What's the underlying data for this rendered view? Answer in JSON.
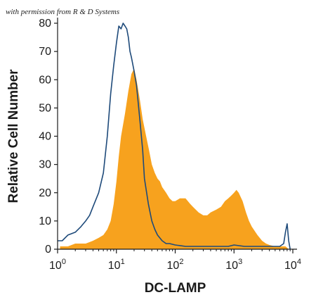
{
  "watermark": "with permission from R & D Systems",
  "chart_data": {
    "type": "area",
    "xlabel": "DC-LAMP",
    "ylabel": "Relative Cell Number",
    "x_scale": "log",
    "xlim": [
      1,
      10000
    ],
    "ylim": [
      0,
      80
    ],
    "x_ticks": [
      {
        "value": 1,
        "base": "10",
        "exp": "0"
      },
      {
        "value": 10,
        "base": "10",
        "exp": "1"
      },
      {
        "value": 100,
        "base": "10",
        "exp": "2"
      },
      {
        "value": 1000,
        "base": "10",
        "exp": "3"
      },
      {
        "value": 10000,
        "base": "10",
        "exp": "4"
      }
    ],
    "y_ticks": [
      0,
      10,
      20,
      30,
      40,
      50,
      60,
      70,
      80
    ],
    "grid": false,
    "series": [
      {
        "style": "filled",
        "color": "#f7a21e",
        "x": [
          1.1,
          1.5,
          2,
          3,
          4,
          5,
          6,
          7,
          8,
          9,
          10,
          11,
          12,
          14,
          16,
          18,
          20,
          22,
          25,
          28,
          32,
          36,
          40,
          45,
          50,
          55,
          60,
          70,
          80,
          90,
          100,
          120,
          150,
          180,
          200,
          250,
          300,
          350,
          400,
          500,
          600,
          700,
          800,
          900,
          1000,
          1100,
          1200,
          1400,
          1600,
          1800,
          2000,
          2500,
          3000,
          3500,
          4000,
          5000,
          6000,
          7000,
          7500,
          8000,
          8500
        ],
        "y": [
          1,
          1,
          2,
          2,
          3,
          4,
          5,
          7,
          10,
          16,
          24,
          33,
          40,
          48,
          56,
          62,
          64,
          60,
          53,
          46,
          40,
          35,
          30,
          27,
          25,
          24,
          22,
          20,
          18,
          17,
          17,
          18,
          18,
          16,
          15,
          13,
          12,
          12,
          13,
          14,
          15,
          17,
          18,
          19,
          20,
          21,
          20,
          17,
          13,
          10,
          8,
          5,
          3,
          2,
          1.5,
          1,
          1,
          1,
          1,
          0.5,
          0
        ]
      },
      {
        "style": "outline",
        "color": "#1e4a7a",
        "x": [
          1.0,
          1.2,
          1.5,
          2,
          2.5,
          3,
          3.5,
          4,
          5,
          6,
          7,
          8,
          9,
          10,
          11,
          12,
          13,
          14,
          15,
          16,
          17,
          18,
          20,
          22,
          25,
          28,
          30,
          35,
          40,
          45,
          50,
          60,
          70,
          80,
          100,
          150,
          200,
          300,
          500,
          800,
          1000,
          1500,
          2000,
          3000,
          4000,
          5000,
          6000,
          7000,
          7500,
          8000,
          8500,
          9000
        ],
        "y": [
          3,
          3,
          5,
          6,
          8,
          10,
          12,
          15,
          20,
          27,
          40,
          55,
          65,
          73,
          79,
          78,
          80,
          79,
          78,
          75,
          70,
          68,
          63,
          58,
          46,
          35,
          25,
          16,
          10,
          7,
          5,
          3,
          2,
          2,
          1.5,
          1,
          1,
          1,
          1,
          1,
          1.5,
          1,
          1,
          1,
          1,
          1,
          1,
          2,
          6,
          9,
          3,
          0
        ]
      }
    ]
  }
}
